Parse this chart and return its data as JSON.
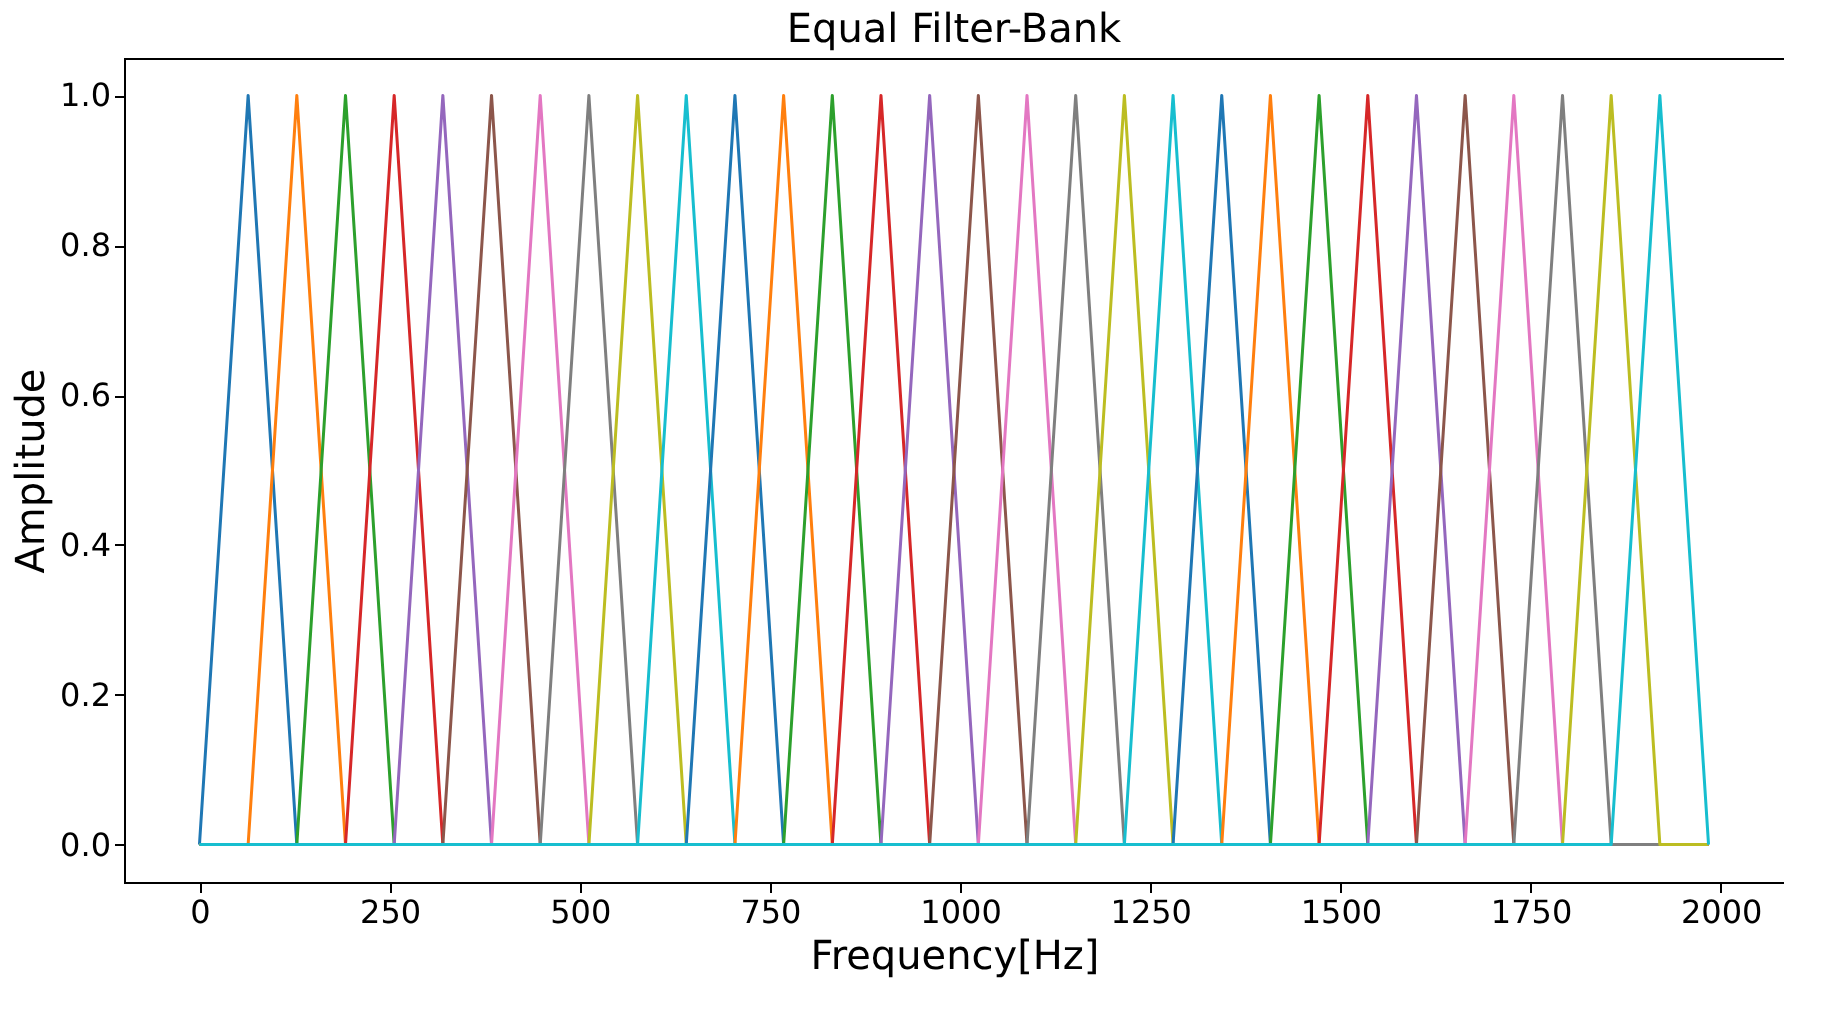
{
  "chart_data": {
    "type": "line",
    "title": "Equal Filter-Bank",
    "xlabel": "Frequency[Hz]",
    "ylabel": "Amplitude",
    "xlim": [
      -99.2,
      2083.2
    ],
    "xticks": [
      0,
      250,
      500,
      750,
      1000,
      1250,
      1500,
      1750,
      2000
    ],
    "ylim": [
      -0.05,
      1.05
    ],
    "yticks": [
      {
        "value": 0,
        "label": "0.0"
      },
      {
        "value": 0.2,
        "label": "0.2"
      },
      {
        "value": 0.4,
        "label": "0.4"
      },
      {
        "value": 0.6,
        "label": "0.6"
      },
      {
        "value": 0.8,
        "label": "0.8"
      },
      {
        "value": 1,
        "label": "1.0"
      }
    ],
    "grid": false,
    "legend": false,
    "marker": "none",
    "line_style": "solid",
    "series": [
      {
        "color": "#1f77b4",
        "x": [
          0,
          64,
          128,
          1984
        ],
        "values": [
          0,
          1,
          0,
          0
        ]
      },
      {
        "color": "#ff7f0e",
        "x": [
          0,
          64,
          128,
          192,
          1984
        ],
        "values": [
          0,
          0,
          1,
          0,
          0
        ]
      },
      {
        "color": "#2ca02c",
        "x": [
          0,
          128,
          192,
          256,
          1984
        ],
        "values": [
          0,
          0,
          1,
          0,
          0
        ]
      },
      {
        "color": "#d62728",
        "x": [
          0,
          192,
          256,
          320,
          1984
        ],
        "values": [
          0,
          0,
          1,
          0,
          0
        ]
      },
      {
        "color": "#9467bd",
        "x": [
          0,
          256,
          320,
          384,
          1984
        ],
        "values": [
          0,
          0,
          1,
          0,
          0
        ]
      },
      {
        "color": "#8c564b",
        "x": [
          0,
          320,
          384,
          448,
          1984
        ],
        "values": [
          0,
          0,
          1,
          0,
          0
        ]
      },
      {
        "color": "#e377c2",
        "x": [
          0,
          384,
          448,
          512,
          1984
        ],
        "values": [
          0,
          0,
          1,
          0,
          0
        ]
      },
      {
        "color": "#7f7f7f",
        "x": [
          0,
          448,
          512,
          576,
          1984
        ],
        "values": [
          0,
          0,
          1,
          0,
          0
        ]
      },
      {
        "color": "#bcbd22",
        "x": [
          0,
          512,
          576,
          640,
          1984
        ],
        "values": [
          0,
          0,
          1,
          0,
          0
        ]
      },
      {
        "color": "#17becf",
        "x": [
          0,
          576,
          640,
          704,
          1984
        ],
        "values": [
          0,
          0,
          1,
          0,
          0
        ]
      },
      {
        "color": "#1f77b4",
        "x": [
          0,
          640,
          704,
          768,
          1984
        ],
        "values": [
          0,
          0,
          1,
          0,
          0
        ]
      },
      {
        "color": "#ff7f0e",
        "x": [
          0,
          704,
          768,
          832,
          1984
        ],
        "values": [
          0,
          0,
          1,
          0,
          0
        ]
      },
      {
        "color": "#2ca02c",
        "x": [
          0,
          768,
          832,
          896,
          1984
        ],
        "values": [
          0,
          0,
          1,
          0,
          0
        ]
      },
      {
        "color": "#d62728",
        "x": [
          0,
          832,
          896,
          960,
          1984
        ],
        "values": [
          0,
          0,
          1,
          0,
          0
        ]
      },
      {
        "color": "#9467bd",
        "x": [
          0,
          896,
          960,
          1024,
          1984
        ],
        "values": [
          0,
          0,
          1,
          0,
          0
        ]
      },
      {
        "color": "#8c564b",
        "x": [
          0,
          960,
          1024,
          1088,
          1984
        ],
        "values": [
          0,
          0,
          1,
          0,
          0
        ]
      },
      {
        "color": "#e377c2",
        "x": [
          0,
          1024,
          1088,
          1152,
          1984
        ],
        "values": [
          0,
          0,
          1,
          0,
          0
        ]
      },
      {
        "color": "#7f7f7f",
        "x": [
          0,
          1088,
          1152,
          1216,
          1984
        ],
        "values": [
          0,
          0,
          1,
          0,
          0
        ]
      },
      {
        "color": "#bcbd22",
        "x": [
          0,
          1152,
          1216,
          1280,
          1984
        ],
        "values": [
          0,
          0,
          1,
          0,
          0
        ]
      },
      {
        "color": "#17becf",
        "x": [
          0,
          1216,
          1280,
          1344,
          1984
        ],
        "values": [
          0,
          0,
          1,
          0,
          0
        ]
      },
      {
        "color": "#1f77b4",
        "x": [
          0,
          1280,
          1344,
          1408,
          1984
        ],
        "values": [
          0,
          0,
          1,
          0,
          0
        ]
      },
      {
        "color": "#ff7f0e",
        "x": [
          0,
          1344,
          1408,
          1472,
          1984
        ],
        "values": [
          0,
          0,
          1,
          0,
          0
        ]
      },
      {
        "color": "#2ca02c",
        "x": [
          0,
          1408,
          1472,
          1536,
          1984
        ],
        "values": [
          0,
          0,
          1,
          0,
          0
        ]
      },
      {
        "color": "#d62728",
        "x": [
          0,
          1472,
          1536,
          1600,
          1984
        ],
        "values": [
          0,
          0,
          1,
          0,
          0
        ]
      },
      {
        "color": "#9467bd",
        "x": [
          0,
          1536,
          1600,
          1664,
          1984
        ],
        "values": [
          0,
          0,
          1,
          0,
          0
        ]
      },
      {
        "color": "#8c564b",
        "x": [
          0,
          1600,
          1664,
          1728,
          1984
        ],
        "values": [
          0,
          0,
          1,
          0,
          0
        ]
      },
      {
        "color": "#e377c2",
        "x": [
          0,
          1664,
          1728,
          1792,
          1984
        ],
        "values": [
          0,
          0,
          1,
          0,
          0
        ]
      },
      {
        "color": "#7f7f7f",
        "x": [
          0,
          1728,
          1792,
          1856,
          1984
        ],
        "values": [
          0,
          0,
          1,
          0,
          0
        ]
      },
      {
        "color": "#bcbd22",
        "x": [
          0,
          1792,
          1856,
          1920,
          1984
        ],
        "values": [
          0,
          0,
          1,
          0,
          0
        ]
      },
      {
        "color": "#17becf",
        "x": [
          0,
          1856,
          1920,
          1984
        ],
        "values": [
          0,
          0,
          1,
          0
        ]
      }
    ]
  }
}
